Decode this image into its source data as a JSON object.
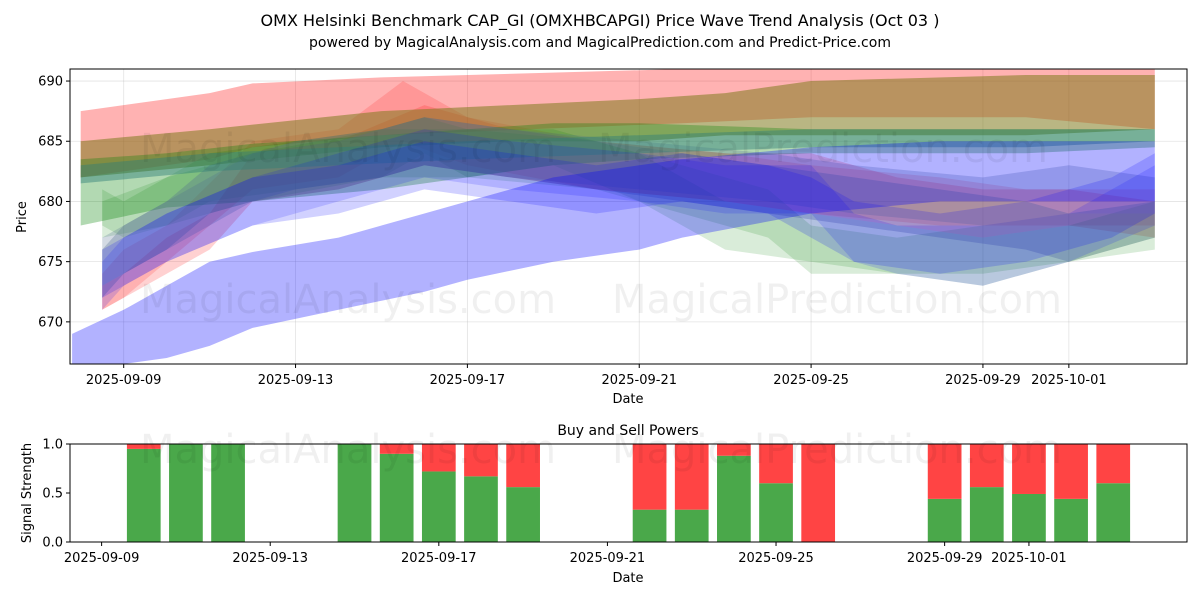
{
  "title": "OMX Helsinki Benchmark CAP_GI (OMXHBCAPGI) Price Wave Trend Analysis (Oct 03 )",
  "subtitle": "powered by MagicalAnalysis.com and MagicalPrediction.com and Predict-Price.com",
  "watermarks": [
    "MagicalAnalysis.com",
    "MagicalPrediction.com"
  ],
  "colors": {
    "red": "#ff0000",
    "green": "#008000",
    "blue": "#0000ff",
    "buy": "#4aa84a",
    "sell": "#ff4444"
  },
  "chart_data": [
    {
      "type": "area",
      "xlabel": "Date",
      "ylabel": "Price",
      "x_ticks": [
        "2025-09-09",
        "2025-09-13",
        "2025-09-17",
        "2025-09-21",
        "2025-09-25",
        "2025-09-29",
        "2025-10-01"
      ],
      "x_tick_days": [
        1,
        5,
        9,
        13,
        17,
        21,
        23
      ],
      "y_ticks": [
        "670",
        "675",
        "680",
        "685",
        "690"
      ],
      "y_tick_values": [
        670,
        675,
        680,
        685,
        690
      ],
      "ylim": [
        666.5,
        691
      ],
      "xlim": [
        -0.25,
        25.75
      ],
      "bands": [
        {
          "name": "Red band 1",
          "color": "red",
          "opacity": 0.3,
          "points": [
            [
              0,
              687.5,
              682
            ],
            [
              2,
              688.5,
              683
            ],
            [
              3,
              689,
              683.5
            ],
            [
              4,
              689.8,
              684.5
            ],
            [
              7,
              690.3,
              685.5
            ],
            [
              14,
              691,
              686.5
            ],
            [
              17,
              691,
              687
            ],
            [
              22,
              691,
              687
            ],
            [
              25,
              691,
              686
            ]
          ]
        },
        {
          "name": "Red band 2",
          "color": "red",
          "opacity": 0.18,
          "points": [
            [
              0.5,
              673,
              671
            ],
            [
              1,
              674,
              672
            ],
            [
              2,
              677,
              674
            ],
            [
              3,
              679,
              676
            ],
            [
              4,
              684,
              680
            ],
            [
              6,
              685,
              681
            ],
            [
              8,
              688,
              683
            ],
            [
              10,
              686,
              682
            ],
            [
              12,
              685,
              681
            ],
            [
              15,
              684,
              680
            ],
            [
              17,
              684,
              679
            ],
            [
              19,
              682,
              678
            ],
            [
              21,
              681,
              677
            ],
            [
              23,
              681,
              678
            ],
            [
              25,
              680,
              677
            ]
          ]
        },
        {
          "name": "Red band 3",
          "color": "red",
          "opacity": 0.15,
          "points": [
            [
              0.5,
              674,
              671
            ],
            [
              1,
              676,
              672
            ],
            [
              2,
              678,
              675
            ],
            [
              4,
              685,
              681
            ],
            [
              6,
              686,
              682
            ],
            [
              7.5,
              690,
              685
            ],
            [
              9,
              687,
              683
            ],
            [
              12,
              685,
              681
            ],
            [
              15,
              684,
              680
            ],
            [
              17,
              683,
              679
            ],
            [
              20,
              682,
              678
            ],
            [
              22,
              681,
              678
            ],
            [
              25,
              681,
              678
            ]
          ]
        },
        {
          "name": "Olive band",
          "color": "olive",
          "opacity": 0.55,
          "points": [
            [
              0,
              685,
              682
            ],
            [
              3,
              686,
              683
            ],
            [
              7,
              687.5,
              684.5
            ],
            [
              10,
              688,
              685
            ],
            [
              13,
              688.5,
              685
            ],
            [
              15,
              689,
              685.5
            ],
            [
              17,
              690,
              685.5
            ],
            [
              22,
              690.5,
              685.5
            ],
            [
              25,
              690.5,
              686
            ]
          ]
        },
        {
          "name": "Green band 1",
          "color": "green",
          "opacity": 0.3,
          "points": [
            [
              0,
              683.5,
              678
            ],
            [
              2,
              684,
              679.5
            ],
            [
              4,
              684.8,
              680
            ],
            [
              7,
              685.5,
              681
            ],
            [
              9,
              686,
              682
            ],
            [
              11,
              686.5,
              683
            ],
            [
              13,
              686.5,
              683.5
            ],
            [
              17,
              686,
              684
            ],
            [
              22,
              686,
              684
            ],
            [
              25,
              686,
              684.5
            ]
          ]
        },
        {
          "name": "Green band 2",
          "color": "green",
          "opacity": 0.15,
          "points": [
            [
              0.5,
              681,
              678
            ],
            [
              1,
              680,
              677
            ],
            [
              2,
              682,
              678
            ],
            [
              3,
              684,
              680
            ],
            [
              5,
              685,
              681
            ],
            [
              7,
              686,
              682
            ],
            [
              8,
              687,
              684
            ],
            [
              9,
              686,
              682
            ],
            [
              11,
              686,
              683
            ],
            [
              13,
              684,
              680
            ],
            [
              14,
              682,
              678
            ],
            [
              15,
              680,
              676
            ],
            [
              17,
              679,
              675
            ],
            [
              19,
              678,
              674
            ],
            [
              21,
              677,
              673
            ],
            [
              23,
              678,
              675
            ],
            [
              25,
              680,
              677
            ]
          ]
        },
        {
          "name": "Green band 3",
          "color": "green",
          "opacity": 0.15,
          "points": [
            [
              0.5,
              680,
              677
            ],
            [
              2,
              682,
              678
            ],
            [
              4,
              684,
              680
            ],
            [
              7,
              686,
              682
            ],
            [
              9,
              686,
              682
            ],
            [
              12,
              685,
              681
            ],
            [
              14,
              683,
              679
            ],
            [
              16,
              681,
              677
            ],
            [
              17,
              678,
              674
            ],
            [
              19,
              677,
              674
            ],
            [
              21,
              678,
              674
            ],
            [
              23,
              679,
              675
            ],
            [
              25,
              679,
              676
            ]
          ]
        },
        {
          "name": "Slate band 1",
          "color": "slate",
          "opacity": 0.3,
          "points": [
            [
              0.5,
              676,
              672
            ],
            [
              1,
              678,
              674
            ],
            [
              2,
              680,
              676
            ],
            [
              3,
              683,
              679
            ],
            [
              5,
              685,
              681
            ],
            [
              7,
              686,
              682
            ],
            [
              8,
              687,
              683
            ],
            [
              10,
              686,
              682
            ],
            [
              12,
              685,
              681
            ],
            [
              14,
              684,
              680
            ],
            [
              16,
              683,
              679
            ],
            [
              18,
              682,
              678
            ],
            [
              20,
              681,
              677
            ],
            [
              22,
              680,
              676
            ],
            [
              23,
              679,
              675
            ],
            [
              25,
              680,
              677
            ]
          ]
        },
        {
          "name": "Slate band 2",
          "color": "slate",
          "opacity": 0.25,
          "points": [
            [
              0.5,
              677,
              673
            ],
            [
              2,
              680,
              676
            ],
            [
              4,
              684,
              680
            ],
            [
              6,
              685,
              681
            ],
            [
              8,
              687,
              683
            ],
            [
              10,
              686,
              682
            ],
            [
              13,
              685,
              681
            ],
            [
              16,
              684,
              680
            ],
            [
              18,
              683,
              679
            ],
            [
              21,
              682,
              678
            ],
            [
              23,
              683,
              679
            ],
            [
              25,
              682,
              679
            ]
          ]
        },
        {
          "name": "Teal band",
          "color": "teal",
          "opacity": 0.45,
          "points": [
            [
              0,
              683,
              681.5
            ],
            [
              3,
              684,
              682.5
            ],
            [
              6,
              684.5,
              683
            ],
            [
              9,
              685,
              683.5
            ],
            [
              13,
              685.5,
              684
            ],
            [
              17,
              686,
              684.5
            ],
            [
              22,
              686,
              684.5
            ],
            [
              25,
              686,
              685
            ]
          ]
        },
        {
          "name": "Blue band main",
          "color": "blue",
          "opacity": 0.3,
          "points": [
            [
              -0.2,
              669,
              666.5
            ],
            [
              1,
              671,
              666.5
            ],
            [
              2,
              673,
              667
            ],
            [
              3,
              675,
              668
            ],
            [
              4,
              675.8,
              669.5
            ],
            [
              6,
              677,
              671
            ],
            [
              8,
              679,
              672.5
            ],
            [
              9,
              680,
              673.5
            ],
            [
              11,
              682,
              675
            ],
            [
              13,
              683,
              676
            ],
            [
              14,
              683.5,
              677
            ],
            [
              17,
              684.5,
              679
            ],
            [
              20,
              685,
              680
            ],
            [
              25,
              685,
              680
            ]
          ]
        },
        {
          "name": "Blue band 2",
          "color": "blue",
          "opacity": 0.15,
          "points": [
            [
              0.5,
              675,
              671
            ],
            [
              1,
              677,
              673
            ],
            [
              2,
              679,
              675
            ],
            [
              4,
              682,
              678
            ],
            [
              6,
              684,
              680
            ],
            [
              8,
              686,
              682
            ],
            [
              10,
              685,
              681
            ],
            [
              13,
              684,
              680
            ],
            [
              15,
              683,
              679
            ],
            [
              17,
              683,
              679
            ],
            [
              18,
              679,
              675
            ],
            [
              19,
              678,
              674
            ],
            [
              21,
              678,
              673
            ],
            [
              23,
              679,
              675
            ],
            [
              25,
              683,
              678
            ]
          ]
        },
        {
          "name": "Blue band 3",
          "color": "blue",
          "opacity": 0.18,
          "points": [
            [
              0.5,
              676,
              672
            ],
            [
              2,
              679,
              675
            ],
            [
              4,
              682,
              678
            ],
            [
              6,
              683,
              679
            ],
            [
              8,
              685,
              681
            ],
            [
              10,
              684,
              680
            ],
            [
              12,
              683,
              679
            ],
            [
              14,
              684,
              680
            ],
            [
              16,
              683,
              679
            ],
            [
              17,
              682,
              677
            ],
            [
              18,
              680,
              675
            ],
            [
              20,
              679,
              674
            ],
            [
              22,
              680,
              675
            ],
            [
              24,
              682,
              677
            ],
            [
              25,
              684,
              679
            ]
          ]
        }
      ]
    },
    {
      "type": "bar",
      "title": "Buy and Sell Powers",
      "xlabel": "Date",
      "ylabel": "Signal Strength",
      "y_ticks": [
        "0.0",
        "0.5",
        "1.0"
      ],
      "y_tick_values": [
        0,
        0.5,
        1.0
      ],
      "ylim": [
        0,
        1
      ],
      "xlim": [
        -0.75,
        25.75
      ],
      "x_ticks": [
        "2025-09-09",
        "2025-09-13",
        "2025-09-17",
        "2025-09-21",
        "2025-09-25",
        "2025-09-29",
        "2025-10-01"
      ],
      "x_tick_days": [
        0,
        4,
        8,
        12,
        16,
        20,
        22
      ],
      "series": [
        {
          "name": "Buy",
          "color": "buy",
          "days": [
            1,
            2,
            3,
            6,
            7,
            8,
            9,
            10,
            13,
            14,
            15,
            16,
            17,
            20,
            21,
            22,
            23,
            24
          ],
          "values": [
            0.95,
            1.0,
            1.0,
            1.0,
            0.9,
            0.72,
            0.67,
            0.56,
            0.33,
            0.33,
            0.88,
            0.6,
            0.0,
            0.44,
            0.56,
            0.49,
            0.44,
            0.6
          ]
        },
        {
          "name": "Sell",
          "color": "sell",
          "days": [
            1,
            2,
            3,
            6,
            7,
            8,
            9,
            10,
            13,
            14,
            15,
            16,
            17,
            20,
            21,
            22,
            23,
            24
          ],
          "values": [
            0.05,
            0.0,
            0.0,
            0.0,
            0.1,
            0.28,
            0.33,
            0.44,
            0.67,
            0.67,
            0.12,
            0.4,
            1.0,
            0.56,
            0.44,
            0.51,
            0.56,
            0.4
          ]
        }
      ]
    }
  ]
}
